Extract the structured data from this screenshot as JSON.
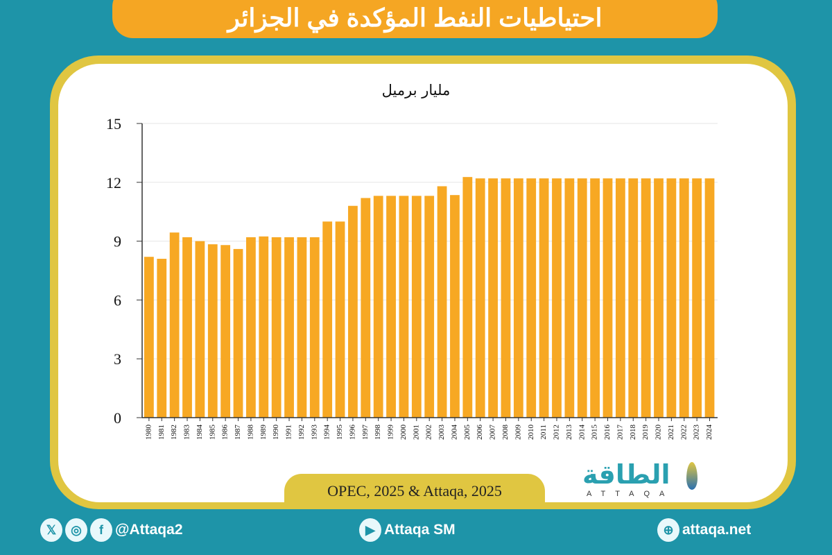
{
  "title": "احتياطيات النفط المؤكدة في الجزائر",
  "source": "OPEC, 2025 & Attaqa, 2025",
  "logo": {
    "arabic": "الطاقة",
    "latin": "ATTAQA"
  },
  "footer": {
    "social_handle": "@Attaqa2",
    "youtube": "Attaqa SM",
    "website": "attaqa.net"
  },
  "colors": {
    "background": "#1e94a8",
    "bar": "#f7a823",
    "banner": "#f5a623",
    "frame": "#e0c641"
  },
  "chart_data": {
    "type": "bar",
    "title": "",
    "ylabel": "مليار برميل",
    "xlabel": "",
    "ylim": [
      0,
      15
    ],
    "yticks": [
      0,
      3,
      6,
      9,
      12,
      15
    ],
    "grid": true,
    "categories": [
      "1980",
      "1981",
      "1982",
      "1983",
      "1984",
      "1985",
      "1986",
      "1987",
      "1988",
      "1989",
      "1990",
      "1991",
      "1992",
      "1993",
      "1994",
      "1995",
      "1996",
      "1997",
      "1998",
      "1999",
      "2000",
      "2001",
      "2002",
      "2003",
      "2004",
      "2005",
      "2006",
      "2007",
      "2008",
      "2009",
      "2010",
      "2011",
      "2012",
      "2013",
      "2014",
      "2015",
      "2016",
      "2017",
      "2018",
      "2019",
      "2020",
      "2021",
      "2022",
      "2023",
      "2024"
    ],
    "values": [
      8.2,
      8.1,
      9.44,
      9.2,
      9.0,
      8.84,
      8.8,
      8.6,
      9.2,
      9.24,
      9.2,
      9.2,
      9.2,
      9.2,
      10.0,
      10.0,
      10.8,
      11.2,
      11.31,
      11.31,
      11.31,
      11.31,
      11.31,
      11.8,
      11.35,
      12.27,
      12.2,
      12.2,
      12.2,
      12.2,
      12.2,
      12.2,
      12.2,
      12.2,
      12.2,
      12.2,
      12.2,
      12.2,
      12.2,
      12.2,
      12.2,
      12.2,
      12.2,
      12.2,
      12.2
    ]
  }
}
